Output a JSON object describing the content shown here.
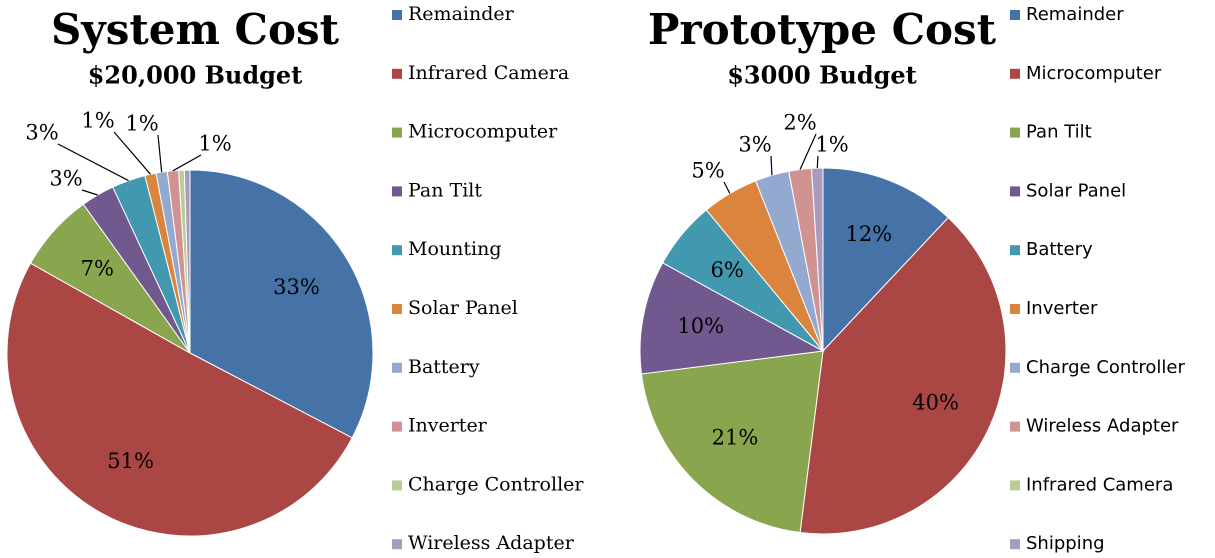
{
  "chart_data": [
    {
      "type": "pie",
      "title": "System Cost",
      "subtitle": "$20,000 Budget",
      "categories": [
        "Remainder",
        "Infrared Camera",
        "Microcomputer",
        "Pan Tilt",
        "Mounting",
        "Solar Panel",
        "Battery",
        "Inverter",
        "Charge Controller",
        "Wireless Adapter"
      ],
      "values": [
        33,
        51,
        7,
        3,
        3,
        1,
        1,
        1,
        0.5,
        0.5
      ],
      "value_labels": [
        "33%",
        "51%",
        "7%",
        "3%",
        "3%",
        "1%",
        "1%",
        "1%",
        null,
        null
      ],
      "colors": [
        "#4572a7",
        "#aa4643",
        "#89a54e",
        "#71588f",
        "#4198af",
        "#db843d",
        "#93a9cf",
        "#d19392",
        "#b9cd96",
        "#a99bbd"
      ],
      "legend": "right"
    },
    {
      "type": "pie",
      "title": "Prototype Cost",
      "subtitle": "$3000 Budget",
      "categories": [
        "Remainder",
        "Microcomputer",
        "Pan Tilt",
        "Solar Panel",
        "Battery",
        "Inverter",
        "Charge Controller",
        "Wireless Adapter",
        "Infrared Camera",
        "Shipping"
      ],
      "values": [
        12,
        40,
        21,
        10,
        6,
        5,
        3,
        2,
        0,
        1
      ],
      "value_labels": [
        "12%",
        "40%",
        "21%",
        "10%",
        "6%",
        "5%",
        "3%",
        "2%",
        null,
        "1%"
      ],
      "colors": [
        "#4572a7",
        "#aa4643",
        "#89a54e",
        "#71588f",
        "#4198af",
        "#db843d",
        "#93a9cf",
        "#d19392",
        "#b9cd96",
        "#a99bbd"
      ],
      "legend": "right"
    }
  ]
}
